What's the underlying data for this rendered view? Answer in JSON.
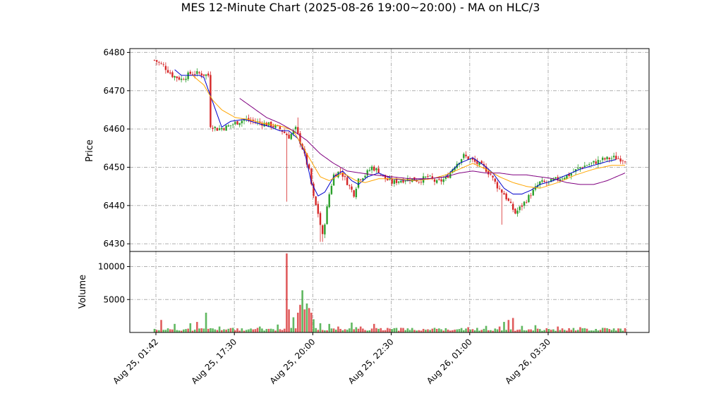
{
  "chart_data": [
    {
      "type": "candlestick",
      "title": "MES 12-Minute Chart (2025-08-26 19:00~20:00) - MA on HLC/3",
      "ylabel": "Price",
      "ylim": [
        6428,
        6481
      ],
      "yticks": [
        6430,
        6440,
        6450,
        6460,
        6470,
        6480
      ],
      "xticks": [
        "Aug 25, 01:42",
        "Aug 25, 17:30",
        "Aug 25, 20:00",
        "Aug 25, 22:30",
        "Aug 26, 01:00",
        "Aug 26, 03:30"
      ],
      "grid": true,
      "colors": {
        "up": "#2ca02c",
        "down": "#d62728",
        "ma_fast": "#0000cc",
        "ma_mid": "#ffa500",
        "ma_slow": "#800080"
      },
      "close_path": [
        [
          0,
          6478
        ],
        [
          4,
          6476.5
        ],
        [
          8,
          6474
        ],
        [
          12,
          6473
        ],
        [
          16,
          6474.5
        ],
        [
          20,
          6474.5
        ],
        [
          24,
          6474
        ],
        [
          25,
          6461
        ],
        [
          28,
          6460
        ],
        [
          32,
          6460.5
        ],
        [
          36,
          6461.5
        ],
        [
          40,
          6462.5
        ],
        [
          44,
          6462
        ],
        [
          48,
          6461.5
        ],
        [
          52,
          6461
        ],
        [
          56,
          6460
        ],
        [
          60,
          6458
        ],
        [
          63,
          6460
        ],
        [
          66,
          6455
        ],
        [
          69,
          6449
        ],
        [
          71,
          6442
        ],
        [
          73,
          6438
        ],
        [
          75,
          6432
        ],
        [
          78,
          6443
        ],
        [
          80,
          6448
        ],
        [
          83,
          6449
        ],
        [
          86,
          6446
        ],
        [
          89,
          6443
        ],
        [
          91,
          6447
        ],
        [
          94,
          6448
        ],
        [
          97,
          6450
        ],
        [
          100,
          6449
        ],
        [
          103,
          6447
        ],
        [
          106,
          6446
        ],
        [
          109,
          6446.5
        ],
        [
          114,
          6447
        ],
        [
          118,
          6446.5
        ],
        [
          122,
          6447.5
        ],
        [
          126,
          6446
        ],
        [
          130,
          6447
        ],
        [
          134,
          6450.5
        ],
        [
          138,
          6453
        ],
        [
          141,
          6452
        ],
        [
          144,
          6451
        ],
        [
          147,
          6450
        ],
        [
          150,
          6448
        ],
        [
          153,
          6445
        ],
        [
          156,
          6443
        ],
        [
          159,
          6440
        ],
        [
          161,
          6438
        ],
        [
          164,
          6440
        ],
        [
          168,
          6443
        ],
        [
          172,
          6446
        ],
        [
          176,
          6446
        ],
        [
          180,
          6447
        ],
        [
          185,
          6448
        ],
        [
          190,
          6450
        ],
        [
          195,
          6451
        ],
        [
          200,
          6452
        ],
        [
          205,
          6452.5
        ],
        [
          210,
          6452
        ]
      ],
      "volume_spikes": [
        [
          3,
          1900
        ],
        [
          9,
          1300
        ],
        [
          16,
          1400
        ],
        [
          19,
          1600
        ],
        [
          23,
          3000
        ],
        [
          29,
          900
        ],
        [
          35,
          700
        ],
        [
          43,
          600
        ],
        [
          47,
          900
        ],
        [
          55,
          1200
        ],
        [
          59,
          12000
        ],
        [
          60,
          3500
        ],
        [
          62,
          2300
        ],
        [
          64,
          3000
        ],
        [
          65,
          4200
        ],
        [
          66,
          6400
        ],
        [
          67,
          3500
        ],
        [
          68,
          4400
        ],
        [
          69,
          3700
        ],
        [
          70,
          3000
        ],
        [
          71,
          2000
        ],
        [
          74,
          1400
        ],
        [
          78,
          1300
        ],
        [
          82,
          900
        ],
        [
          88,
          1500
        ],
        [
          90,
          800
        ],
        [
          92,
          900
        ],
        [
          98,
          1300
        ],
        [
          110,
          700
        ],
        [
          125,
          700
        ],
        [
          130,
          650
        ],
        [
          140,
          800
        ],
        [
          148,
          1000
        ],
        [
          154,
          900
        ],
        [
          156,
          1600
        ],
        [
          158,
          1900
        ],
        [
          160,
          2200
        ],
        [
          164,
          1000
        ],
        [
          170,
          1100
        ],
        [
          180,
          900
        ],
        [
          190,
          800
        ],
        [
          200,
          700
        ]
      ],
      "ma_fast": [
        [
          9,
          6475.5
        ],
        [
          12,
          6474
        ],
        [
          20,
          6474
        ],
        [
          22,
          6473.5
        ],
        [
          30,
          6460.5
        ],
        [
          34,
          6462
        ],
        [
          40,
          6462.5
        ],
        [
          46,
          6461.5
        ],
        [
          52,
          6460.5
        ],
        [
          56,
          6459.5
        ],
        [
          60,
          6459.5
        ],
        [
          64,
          6457.5
        ],
        [
          67,
          6454
        ],
        [
          70,
          6446
        ],
        [
          73,
          6442.5
        ],
        [
          76,
          6443.5
        ],
        [
          80,
          6447.5
        ],
        [
          84,
          6449
        ],
        [
          88,
          6446.5
        ],
        [
          91,
          6445.5
        ],
        [
          95,
          6447.5
        ],
        [
          100,
          6448.5
        ],
        [
          106,
          6447
        ],
        [
          114,
          6446.5
        ],
        [
          122,
          6447
        ],
        [
          130,
          6447.5
        ],
        [
          136,
          6451
        ],
        [
          142,
          6452.5
        ],
        [
          147,
          6450.5
        ],
        [
          151,
          6448.5
        ],
        [
          156,
          6444.5
        ],
        [
          160,
          6443
        ],
        [
          164,
          6443
        ],
        [
          168,
          6444
        ],
        [
          172,
          6445.5
        ],
        [
          178,
          6446.5
        ],
        [
          184,
          6448
        ],
        [
          190,
          6449.5
        ],
        [
          196,
          6450.5
        ],
        [
          202,
          6451.5
        ],
        [
          206,
          6452
        ]
      ],
      "ma_mid": [
        [
          17,
          6474
        ],
        [
          22,
          6471.5
        ],
        [
          26,
          6467.5
        ],
        [
          30,
          6465
        ],
        [
          36,
          6463
        ],
        [
          42,
          6462.5
        ],
        [
          48,
          6461.5
        ],
        [
          54,
          6461
        ],
        [
          58,
          6460.5
        ],
        [
          62,
          6459.5
        ],
        [
          66,
          6455.5
        ],
        [
          70,
          6451.5
        ],
        [
          74,
          6447.5
        ],
        [
          78,
          6446.5
        ],
        [
          84,
          6448.5
        ],
        [
          90,
          6446.5
        ],
        [
          94,
          6446
        ],
        [
          100,
          6447
        ],
        [
          108,
          6447
        ],
        [
          116,
          6446.5
        ],
        [
          124,
          6447
        ],
        [
          130,
          6448
        ],
        [
          136,
          6449.5
        ],
        [
          142,
          6451
        ],
        [
          148,
          6449.5
        ],
        [
          154,
          6447.5
        ],
        [
          160,
          6446
        ],
        [
          166,
          6445
        ],
        [
          172,
          6444.5
        ],
        [
          180,
          6446
        ],
        [
          188,
          6448
        ],
        [
          196,
          6449.5
        ],
        [
          204,
          6450.5
        ],
        [
          210,
          6450.5
        ]
      ],
      "ma_slow": [
        [
          38,
          6468
        ],
        [
          44,
          6465.5
        ],
        [
          50,
          6463
        ],
        [
          56,
          6461.5
        ],
        [
          62,
          6459.5
        ],
        [
          68,
          6457
        ],
        [
          74,
          6453.5
        ],
        [
          80,
          6451
        ],
        [
          86,
          6449
        ],
        [
          92,
          6448.5
        ],
        [
          98,
          6448
        ],
        [
          106,
          6447.5
        ],
        [
          114,
          6447
        ],
        [
          122,
          6447
        ],
        [
          130,
          6447.5
        ],
        [
          136,
          6448.5
        ],
        [
          142,
          6449
        ],
        [
          148,
          6448.5
        ],
        [
          154,
          6448.5
        ],
        [
          160,
          6448
        ],
        [
          166,
          6448
        ],
        [
          172,
          6447.5
        ],
        [
          178,
          6447
        ],
        [
          184,
          6446
        ],
        [
          190,
          6445.5
        ],
        [
          196,
          6445.5
        ],
        [
          202,
          6446.5
        ],
        [
          208,
          6448
        ],
        [
          210,
          6448.5
        ]
      ]
    },
    {
      "type": "bar",
      "ylabel": "Volume",
      "ylim": [
        0,
        12300
      ],
      "yticks": [
        5000,
        10000
      ],
      "grid": true
    }
  ]
}
